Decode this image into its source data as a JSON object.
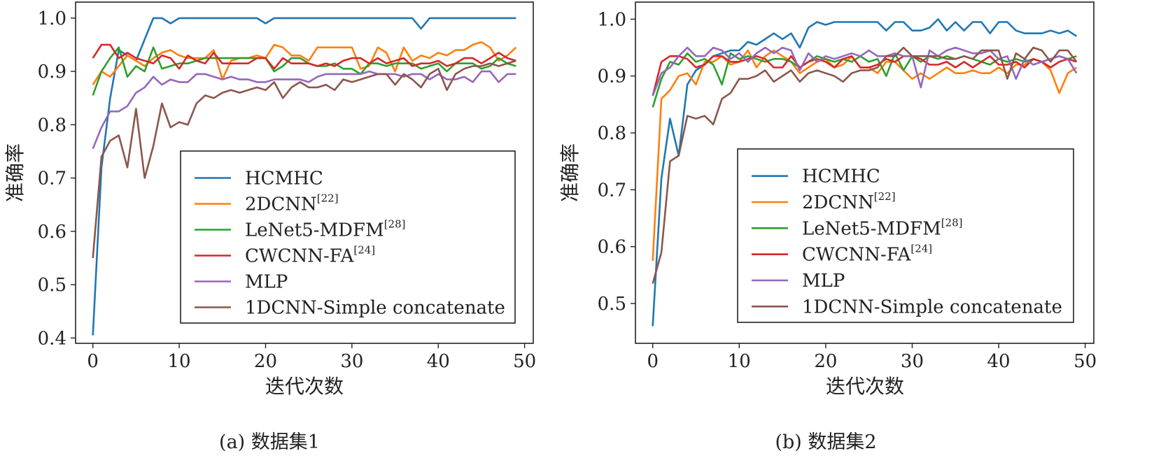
{
  "chart_data": [
    {
      "type": "line",
      "caption": "(a) 数据集1",
      "xlabel": "迭代次数",
      "ylabel": "准确率",
      "xlim": [
        -2,
        51
      ],
      "ylim": [
        0.39,
        1.03
      ],
      "xticks": [
        0,
        10,
        20,
        30,
        40,
        50
      ],
      "yticks": [
        0.4,
        0.5,
        0.6,
        0.7,
        0.8,
        0.9,
        1.0
      ],
      "xtick_labels": [
        "0",
        "10",
        "20",
        "30",
        "40",
        "50"
      ],
      "ytick_labels": [
        "0.4",
        "0.5",
        "0.6",
        "0.7",
        "0.8",
        "0.9",
        "1.0"
      ],
      "legend_position": "lower-right",
      "x": [
        0,
        1,
        2,
        3,
        4,
        5,
        6,
        7,
        8,
        9,
        10,
        11,
        12,
        13,
        14,
        15,
        16,
        17,
        18,
        19,
        20,
        21,
        22,
        23,
        24,
        25,
        26,
        27,
        28,
        29,
        30,
        31,
        32,
        33,
        34,
        35,
        36,
        37,
        38,
        39,
        40,
        41,
        42,
        43,
        44,
        45,
        46,
        47,
        48,
        49
      ],
      "series": [
        {
          "name": "HCMHC",
          "sup": "",
          "color": "#1f77b4",
          "values": [
            0.405,
            0.72,
            0.85,
            0.94,
            0.93,
            0.92,
            0.96,
            1.0,
            1.0,
            0.99,
            1.0,
            1.0,
            1.0,
            1.0,
            1.0,
            1.0,
            1.0,
            1.0,
            1.0,
            1.0,
            0.99,
            1.0,
            1.0,
            1.0,
            1.0,
            1.0,
            1.0,
            1.0,
            1.0,
            1.0,
            1.0,
            1.0,
            1.0,
            1.0,
            1.0,
            1.0,
            1.0,
            1.0,
            0.98,
            1.0,
            1.0,
            1.0,
            1.0,
            1.0,
            1.0,
            1.0,
            1.0,
            1.0,
            1.0,
            1.0
          ]
        },
        {
          "name": "2DCNN",
          "sup": "[22]",
          "color": "#ff7f0e",
          "values": [
            0.875,
            0.9,
            0.89,
            0.91,
            0.93,
            0.92,
            0.91,
            0.925,
            0.935,
            0.94,
            0.93,
            0.925,
            0.925,
            0.925,
            0.94,
            0.885,
            0.92,
            0.925,
            0.925,
            0.93,
            0.925,
            0.95,
            0.945,
            0.93,
            0.93,
            0.92,
            0.945,
            0.945,
            0.945,
            0.945,
            0.945,
            0.905,
            0.91,
            0.945,
            0.935,
            0.9,
            0.945,
            0.92,
            0.93,
            0.925,
            0.935,
            0.93,
            0.94,
            0.94,
            0.95,
            0.955,
            0.945,
            0.92,
            0.93,
            0.945
          ]
        },
        {
          "name": "LeNet5-MDFM",
          "sup": "[28]",
          "color": "#2ca02c",
          "values": [
            0.855,
            0.9,
            0.925,
            0.945,
            0.89,
            0.91,
            0.9,
            0.945,
            0.905,
            0.91,
            0.915,
            0.915,
            0.92,
            0.925,
            0.925,
            0.925,
            0.925,
            0.925,
            0.925,
            0.925,
            0.925,
            0.9,
            0.91,
            0.925,
            0.925,
            0.915,
            0.91,
            0.91,
            0.915,
            0.905,
            0.905,
            0.895,
            0.915,
            0.915,
            0.91,
            0.915,
            0.915,
            0.915,
            0.905,
            0.91,
            0.915,
            0.9,
            0.915,
            0.915,
            0.915,
            0.905,
            0.91,
            0.925,
            0.915,
            0.91
          ]
        },
        {
          "name": "CWCNN-FA",
          "sup": "[24]",
          "color": "#d62728",
          "values": [
            0.925,
            0.95,
            0.95,
            0.925,
            0.935,
            0.925,
            0.92,
            0.915,
            0.93,
            0.925,
            0.905,
            0.93,
            0.92,
            0.915,
            0.935,
            0.915,
            0.915,
            0.915,
            0.915,
            0.925,
            0.925,
            0.905,
            0.925,
            0.915,
            0.915,
            0.915,
            0.91,
            0.915,
            0.91,
            0.92,
            0.925,
            0.925,
            0.915,
            0.925,
            0.915,
            0.92,
            0.925,
            0.91,
            0.915,
            0.915,
            0.92,
            0.91,
            0.915,
            0.925,
            0.925,
            0.915,
            0.925,
            0.935,
            0.925,
            0.92
          ]
        },
        {
          "name": "MLP",
          "sup": "",
          "color": "#9467bd",
          "values": [
            0.755,
            0.795,
            0.825,
            0.825,
            0.835,
            0.86,
            0.87,
            0.89,
            0.875,
            0.885,
            0.88,
            0.88,
            0.895,
            0.895,
            0.89,
            0.885,
            0.89,
            0.885,
            0.885,
            0.88,
            0.88,
            0.885,
            0.885,
            0.885,
            0.885,
            0.88,
            0.89,
            0.895,
            0.895,
            0.895,
            0.895,
            0.895,
            0.9,
            0.895,
            0.895,
            0.895,
            0.89,
            0.895,
            0.895,
            0.885,
            0.895,
            0.885,
            0.885,
            0.89,
            0.88,
            0.9,
            0.9,
            0.88,
            0.895,
            0.895
          ]
        },
        {
          "name": "1DCNN-Simple concatenate",
          "sup": "",
          "color": "#8c564b",
          "values": [
            0.55,
            0.74,
            0.77,
            0.78,
            0.72,
            0.83,
            0.7,
            0.76,
            0.84,
            0.795,
            0.805,
            0.8,
            0.84,
            0.855,
            0.85,
            0.86,
            0.865,
            0.86,
            0.865,
            0.87,
            0.865,
            0.88,
            0.85,
            0.87,
            0.88,
            0.87,
            0.87,
            0.875,
            0.865,
            0.885,
            0.88,
            0.885,
            0.89,
            0.895,
            0.895,
            0.875,
            0.895,
            0.885,
            0.87,
            0.895,
            0.905,
            0.865,
            0.895,
            0.905,
            0.91,
            0.91,
            0.915,
            0.91,
            0.915,
            0.92
          ]
        }
      ]
    },
    {
      "type": "line",
      "caption": "(b) 数据集2",
      "xlabel": "迭代次数",
      "ylabel": "准确率",
      "xlim": [
        -2,
        51
      ],
      "ylim": [
        0.43,
        1.03
      ],
      "xticks": [
        0,
        10,
        20,
        30,
        40,
        50
      ],
      "yticks": [
        0.5,
        0.6,
        0.7,
        0.8,
        0.9,
        1.0
      ],
      "xtick_labels": [
        "0",
        "10",
        "20",
        "30",
        "40",
        "50"
      ],
      "ytick_labels": [
        "0.5",
        "0.6",
        "0.7",
        "0.8",
        "0.9",
        "1.0"
      ],
      "legend_position": "lower-right",
      "x": [
        0,
        1,
        2,
        3,
        4,
        5,
        6,
        7,
        8,
        9,
        10,
        11,
        12,
        13,
        14,
        15,
        16,
        17,
        18,
        19,
        20,
        21,
        22,
        23,
        24,
        25,
        26,
        27,
        28,
        29,
        30,
        31,
        32,
        33,
        34,
        35,
        36,
        37,
        38,
        39,
        40,
        41,
        42,
        43,
        44,
        45,
        46,
        47,
        48,
        49
      ],
      "series": [
        {
          "name": "HCMHC",
          "sup": "",
          "color": "#1f77b4",
          "values": [
            0.46,
            0.72,
            0.825,
            0.76,
            0.885,
            0.91,
            0.92,
            0.935,
            0.94,
            0.945,
            0.945,
            0.96,
            0.955,
            0.965,
            0.975,
            0.965,
            0.975,
            0.95,
            0.985,
            0.995,
            0.99,
            0.995,
            0.995,
            0.995,
            0.995,
            0.995,
            0.995,
            0.98,
            0.995,
            0.995,
            0.98,
            0.98,
            0.985,
            1.0,
            0.98,
            0.995,
            0.98,
            0.995,
            0.995,
            0.975,
            0.995,
            0.995,
            0.98,
            0.975,
            0.975,
            0.975,
            0.98,
            0.975,
            0.98,
            0.97
          ]
        },
        {
          "name": "2DCNN",
          "sup": "[22]",
          "color": "#ff7f0e",
          "values": [
            0.575,
            0.86,
            0.875,
            0.9,
            0.905,
            0.885,
            0.925,
            0.925,
            0.935,
            0.92,
            0.925,
            0.945,
            0.915,
            0.935,
            0.945,
            0.935,
            0.925,
            0.905,
            0.915,
            0.925,
            0.93,
            0.915,
            0.92,
            0.935,
            0.915,
            0.915,
            0.905,
            0.925,
            0.925,
            0.91,
            0.895,
            0.905,
            0.895,
            0.905,
            0.915,
            0.905,
            0.905,
            0.91,
            0.905,
            0.905,
            0.915,
            0.905,
            0.92,
            0.92,
            0.93,
            0.925,
            0.91,
            0.87,
            0.905,
            0.915
          ]
        },
        {
          "name": "LeNet5-MDFM",
          "sup": "[28]",
          "color": "#2ca02c",
          "values": [
            0.845,
            0.895,
            0.925,
            0.92,
            0.94,
            0.925,
            0.93,
            0.92,
            0.885,
            0.94,
            0.93,
            0.935,
            0.93,
            0.925,
            0.93,
            0.93,
            0.925,
            0.915,
            0.925,
            0.935,
            0.93,
            0.925,
            0.93,
            0.925,
            0.935,
            0.925,
            0.93,
            0.9,
            0.94,
            0.91,
            0.935,
            0.925,
            0.935,
            0.93,
            0.935,
            0.93,
            0.935,
            0.93,
            0.925,
            0.92,
            0.93,
            0.925,
            0.93,
            0.925,
            0.93,
            0.925,
            0.93,
            0.935,
            0.93,
            0.935
          ]
        },
        {
          "name": "CWCNN-FA",
          "sup": "[24]",
          "color": "#d62728",
          "values": [
            0.865,
            0.925,
            0.935,
            0.935,
            0.93,
            0.915,
            0.92,
            0.935,
            0.935,
            0.925,
            0.925,
            0.93,
            0.935,
            0.93,
            0.915,
            0.915,
            0.935,
            0.915,
            0.925,
            0.93,
            0.925,
            0.915,
            0.93,
            0.935,
            0.915,
            0.915,
            0.92,
            0.93,
            0.925,
            0.935,
            0.935,
            0.93,
            0.92,
            0.92,
            0.925,
            0.915,
            0.925,
            0.915,
            0.925,
            0.935,
            0.92,
            0.92,
            0.925,
            0.915,
            0.93,
            0.925,
            0.915,
            0.925,
            0.93,
            0.925
          ]
        },
        {
          "name": "MLP",
          "sup": "",
          "color": "#9467bd",
          "values": [
            0.865,
            0.905,
            0.915,
            0.935,
            0.95,
            0.935,
            0.935,
            0.95,
            0.945,
            0.93,
            0.94,
            0.925,
            0.94,
            0.95,
            0.94,
            0.95,
            0.945,
            0.91,
            0.94,
            0.925,
            0.935,
            0.93,
            0.935,
            0.94,
            0.935,
            0.945,
            0.935,
            0.935,
            0.94,
            0.935,
            0.935,
            0.88,
            0.945,
            0.935,
            0.945,
            0.95,
            0.945,
            0.94,
            0.94,
            0.945,
            0.93,
            0.935,
            0.895,
            0.93,
            0.92,
            0.925,
            0.93,
            0.935,
            0.93,
            0.905
          ]
        },
        {
          "name": "1DCNN-Simple concatenate",
          "sup": "",
          "color": "#8c564b",
          "values": [
            0.535,
            0.59,
            0.75,
            0.76,
            0.83,
            0.825,
            0.83,
            0.815,
            0.86,
            0.87,
            0.895,
            0.895,
            0.9,
            0.91,
            0.89,
            0.9,
            0.91,
            0.89,
            0.905,
            0.91,
            0.905,
            0.9,
            0.89,
            0.905,
            0.91,
            0.91,
            0.915,
            0.935,
            0.935,
            0.95,
            0.935,
            0.935,
            0.935,
            0.935,
            0.93,
            0.93,
            0.935,
            0.93,
            0.945,
            0.945,
            0.945,
            0.895,
            0.94,
            0.93,
            0.95,
            0.945,
            0.925,
            0.945,
            0.945,
            0.925
          ]
        }
      ]
    }
  ]
}
